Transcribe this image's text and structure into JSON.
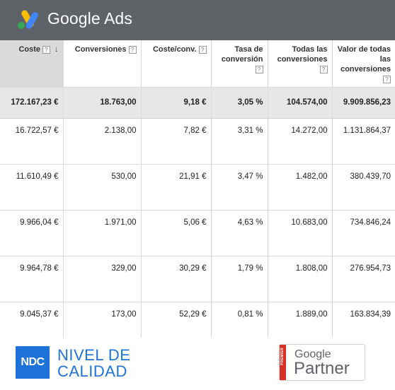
{
  "header": {
    "brand": "Google Ads",
    "logo_icon": "google-ads-logo-icon",
    "colors": {
      "bar": "#5f6368",
      "logo_yellow": "#fbbc04",
      "logo_blue": "#4285f4",
      "logo_green": "#34a853"
    }
  },
  "table": {
    "columns": [
      {
        "label": "Coste",
        "help": "?",
        "sorted": true,
        "sort_icon": "arrow-down-icon"
      },
      {
        "label": "Conversiones",
        "help": "?"
      },
      {
        "label": "Coste/conv.",
        "help": "?"
      },
      {
        "label": "Tasa de conversión",
        "help": "?"
      },
      {
        "label": "Todas las conversiones",
        "help": "?"
      },
      {
        "label": "Valor de todas las conversiones",
        "help": "?"
      }
    ],
    "total": [
      "172.167,23 €",
      "18.763,00",
      "9,18 €",
      "3,05 %",
      "104.574,00",
      "9.909.856,23"
    ],
    "rows": [
      [
        "16.722,57 €",
        "2.138,00",
        "7,82 €",
        "3,31 %",
        "14.272,00",
        "1.131.864,37"
      ],
      [
        "11.610,49 €",
        "530,00",
        "21,91 €",
        "3,47 %",
        "1.482,00",
        "380.439,70"
      ],
      [
        "9.966,04 €",
        "1.971,00",
        "5,06 €",
        "4,63 %",
        "10.683,00",
        "734.846,24"
      ],
      [
        "9.964,78 €",
        "329,00",
        "30,29 €",
        "1,79 %",
        "1.808,00",
        "276.954,73"
      ],
      [
        "9.045,37 €",
        "173,00",
        "52,29 €",
        "0,81 %",
        "1.889,00",
        "163.834,39"
      ]
    ]
  },
  "footer": {
    "ndc_logo": "NDC",
    "ndc_line1": "NIVEL DE",
    "ndc_line2": "CALIDAD",
    "partner_stripe": "PREMIER",
    "partner_google": "Google",
    "partner_word": "Partner",
    "colors": {
      "ndc_blue": "#1e73d9",
      "partner_red": "#d93025"
    }
  }
}
